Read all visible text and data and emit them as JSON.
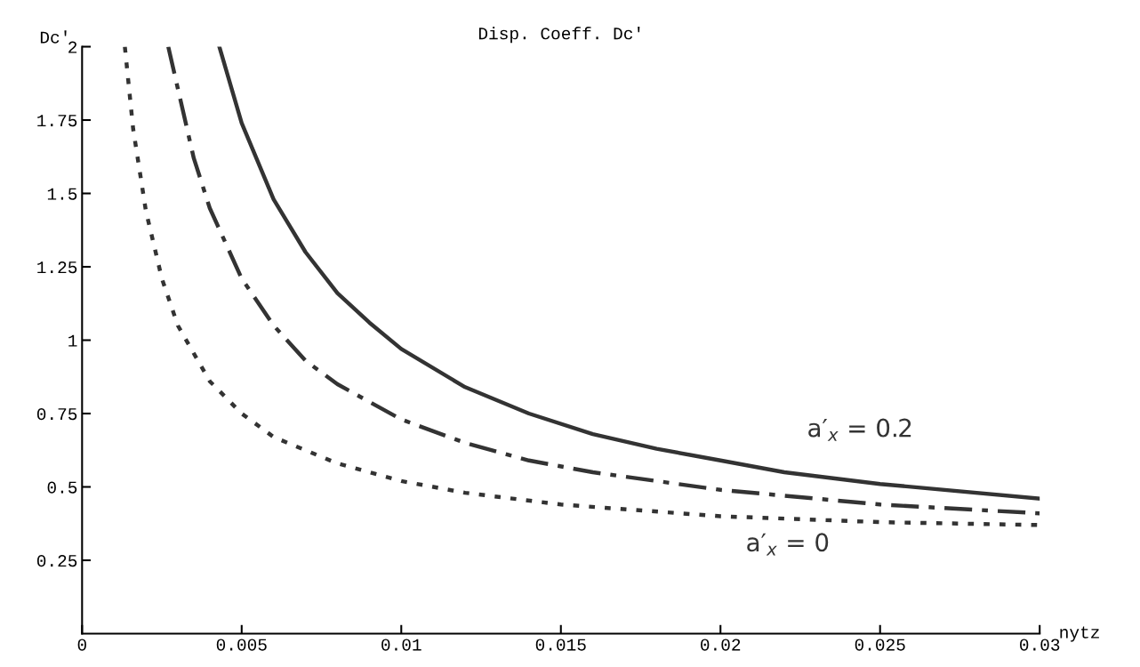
{
  "chart_data": {
    "type": "line",
    "title": "Disp. Coeff. Dc′",
    "xlabel": "nytz",
    "ylabel": "Dc′",
    "xlim": [
      0,
      0.03
    ],
    "ylim": [
      0,
      2
    ],
    "xticks": [
      0,
      0.005,
      0.01,
      0.015,
      0.02,
      0.025,
      0.03
    ],
    "yticks": [
      0.25,
      0.5,
      0.75,
      1,
      1.25,
      1.5,
      1.75,
      2
    ],
    "grid": false,
    "marker": "none",
    "series": [
      {
        "color": "#333333",
        "line_style": "solid",
        "x": [
          0.0043,
          0.005,
          0.006,
          0.007,
          0.008,
          0.009,
          0.01,
          0.012,
          0.014,
          0.016,
          0.018,
          0.02,
          0.022,
          0.025,
          0.03
        ],
        "values": [
          2.0,
          1.74,
          1.48,
          1.3,
          1.16,
          1.06,
          0.97,
          0.84,
          0.75,
          0.68,
          0.63,
          0.59,
          0.55,
          0.51,
          0.46
        ]
      },
      {
        "color": "#333333",
        "line_style": "dashdot",
        "x": [
          0.0027,
          0.0035,
          0.004,
          0.005,
          0.006,
          0.007,
          0.008,
          0.01,
          0.012,
          0.014,
          0.016,
          0.02,
          0.025,
          0.03
        ],
        "values": [
          2.0,
          1.62,
          1.45,
          1.21,
          1.05,
          0.93,
          0.85,
          0.73,
          0.65,
          0.59,
          0.55,
          0.49,
          0.44,
          0.41
        ]
      },
      {
        "color": "#333333",
        "line_style": "dotted",
        "x": [
          0.00134,
          0.0016,
          0.002,
          0.0025,
          0.003,
          0.004,
          0.005,
          0.006,
          0.008,
          0.01,
          0.012,
          0.015,
          0.02,
          0.025,
          0.03
        ],
        "values": [
          2.0,
          1.72,
          1.44,
          1.21,
          1.05,
          0.86,
          0.75,
          0.67,
          0.58,
          0.52,
          0.48,
          0.44,
          0.4,
          0.38,
          0.37
        ]
      }
    ],
    "annotations": [
      "a′$_{x}$ = 0.2",
      "a′$_{x}$ = 0"
    ]
  }
}
